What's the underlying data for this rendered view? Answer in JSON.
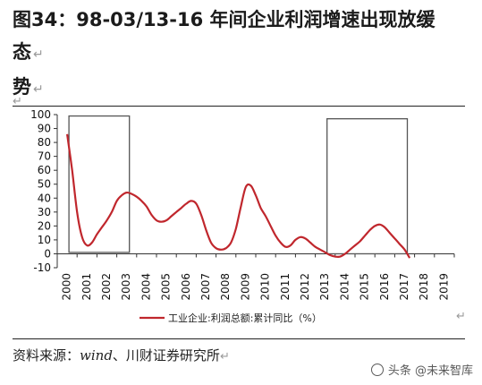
{
  "page": {
    "title_line1": "图34：98-03/13-16 年间企业利润增速出现放缓",
    "title_line2": "态",
    "title_line3": "势",
    "return_mark": "↵",
    "source_prefix": "资料来源：",
    "source_italic": "wind",
    "source_suffix": "、川财证券研究所",
    "watermark": "头条 @未来智库"
  },
  "chart_data": {
    "type": "line",
    "title": "",
    "xlabel": "",
    "ylabel": "",
    "ylim": [
      -10,
      100
    ],
    "yticks": [
      -10,
      0,
      10,
      20,
      30,
      40,
      50,
      60,
      70,
      80,
      90,
      100
    ],
    "categories": [
      "2000",
      "2001",
      "2002",
      "2003",
      "2004",
      "2005",
      "2006",
      "2007",
      "2008",
      "2009",
      "2010",
      "2011",
      "2012",
      "2013",
      "2014",
      "2015",
      "2016",
      "2017",
      "2018",
      "2019"
    ],
    "series": [
      {
        "name": "工业企业:利润总额:累计同比（%）",
        "color": "#c0272d",
        "points": [
          [
            0.0,
            86
          ],
          [
            0.25,
            60
          ],
          [
            0.5,
            30
          ],
          [
            0.75,
            12
          ],
          [
            1.0,
            6
          ],
          [
            1.25,
            8
          ],
          [
            1.5,
            14
          ],
          [
            1.75,
            19
          ],
          [
            2.0,
            24
          ],
          [
            2.25,
            30
          ],
          [
            2.5,
            38
          ],
          [
            2.75,
            42
          ],
          [
            3.0,
            44
          ],
          [
            3.25,
            43
          ],
          [
            3.5,
            41
          ],
          [
            3.75,
            38
          ],
          [
            4.0,
            34
          ],
          [
            4.25,
            28
          ],
          [
            4.5,
            24
          ],
          [
            4.75,
            23
          ],
          [
            5.0,
            24
          ],
          [
            5.25,
            27
          ],
          [
            5.5,
            30
          ],
          [
            5.75,
            33
          ],
          [
            6.0,
            36
          ],
          [
            6.25,
            38
          ],
          [
            6.5,
            36
          ],
          [
            6.75,
            28
          ],
          [
            7.0,
            17
          ],
          [
            7.25,
            8
          ],
          [
            7.5,
            4
          ],
          [
            7.75,
            3
          ],
          [
            8.0,
            4
          ],
          [
            8.25,
            8
          ],
          [
            8.5,
            18
          ],
          [
            8.75,
            34
          ],
          [
            9.0,
            48
          ],
          [
            9.25,
            49
          ],
          [
            9.5,
            42
          ],
          [
            9.75,
            33
          ],
          [
            10.0,
            27
          ],
          [
            10.25,
            20
          ],
          [
            10.5,
            13
          ],
          [
            10.75,
            8
          ],
          [
            11.0,
            5
          ],
          [
            11.25,
            6
          ],
          [
            11.5,
            10
          ],
          [
            11.75,
            12
          ],
          [
            12.0,
            11
          ],
          [
            12.25,
            8
          ],
          [
            12.5,
            5
          ],
          [
            12.75,
            3
          ],
          [
            13.0,
            1
          ],
          [
            13.25,
            -1
          ],
          [
            13.5,
            -2
          ],
          [
            13.75,
            -2
          ],
          [
            14.0,
            0
          ],
          [
            14.25,
            3
          ],
          [
            14.5,
            6
          ],
          [
            14.75,
            9
          ],
          [
            15.0,
            13
          ],
          [
            15.25,
            17
          ],
          [
            15.5,
            20
          ],
          [
            15.75,
            21
          ],
          [
            16.0,
            19
          ],
          [
            16.25,
            15
          ],
          [
            16.5,
            11
          ],
          [
            16.75,
            7
          ],
          [
            17.0,
            3
          ],
          [
            17.25,
            -3
          ]
        ]
      }
    ],
    "highlight_boxes": [
      {
        "x_from": "2000",
        "x_to": "2003",
        "y_from": 1,
        "y_to": 99
      },
      {
        "x_from": "2013",
        "x_to": "2017",
        "y_from": 0,
        "y_to": 97
      }
    ],
    "legend_position": "bottom",
    "grid": false
  }
}
